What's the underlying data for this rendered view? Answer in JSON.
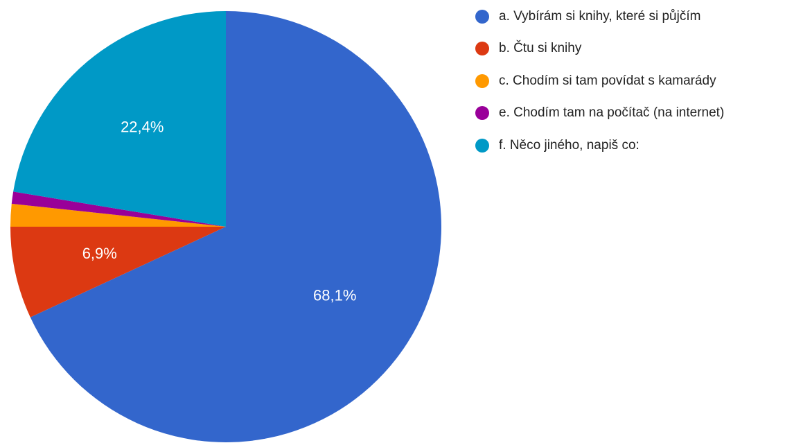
{
  "chart_data": {
    "type": "pie",
    "title": "",
    "start_angle_deg": 0,
    "direction": "clockwise",
    "legend_position": "right",
    "slices": [
      {
        "label": "a. Vybírám si knihy, které si půjčím",
        "value": 68.1,
        "display": "68,1%",
        "color": "#3366cc"
      },
      {
        "label": "b. Čtu si knihy",
        "value": 6.9,
        "display": "6,9%",
        "color": "#dc3912"
      },
      {
        "label": "c. Chodím si tam povídat s kamarády",
        "value": 1.7,
        "display": "",
        "color": "#ff9900"
      },
      {
        "label": "e. Chodím tam na počítač (na internet)",
        "value": 0.9,
        "display": "",
        "color": "#990099"
      },
      {
        "label": "f. Něco jiného, napiš co:",
        "value": 22.4,
        "display": "22,4%",
        "color": "#0099c6"
      }
    ]
  }
}
